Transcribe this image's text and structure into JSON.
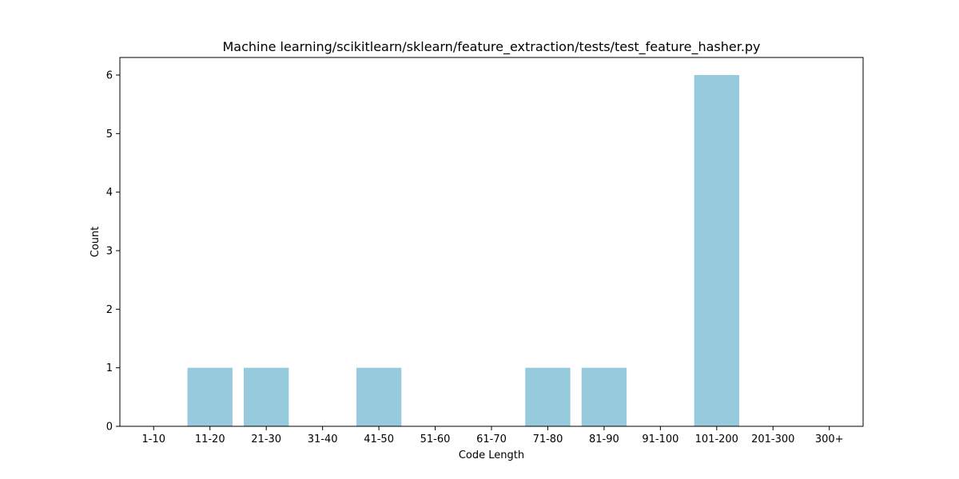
{
  "chart_data": {
    "type": "bar",
    "title": "Machine learning/scikitlearn/sklearn/feature_extraction/tests/test_feature_hasher.py",
    "xlabel": "Code Length",
    "ylabel": "Count",
    "categories": [
      "1-10",
      "11-20",
      "21-30",
      "31-40",
      "41-50",
      "51-60",
      "61-70",
      "71-80",
      "81-90",
      "91-100",
      "101-200",
      "201-300",
      "300+"
    ],
    "values": [
      0,
      1,
      1,
      0,
      1,
      0,
      0,
      1,
      1,
      0,
      6,
      0,
      0
    ],
    "ylim": [
      0,
      6.3
    ],
    "yticks": [
      0,
      1,
      2,
      3,
      4,
      5,
      6
    ],
    "bar_color": "#96cadc",
    "grid": false,
    "legend": "none"
  }
}
